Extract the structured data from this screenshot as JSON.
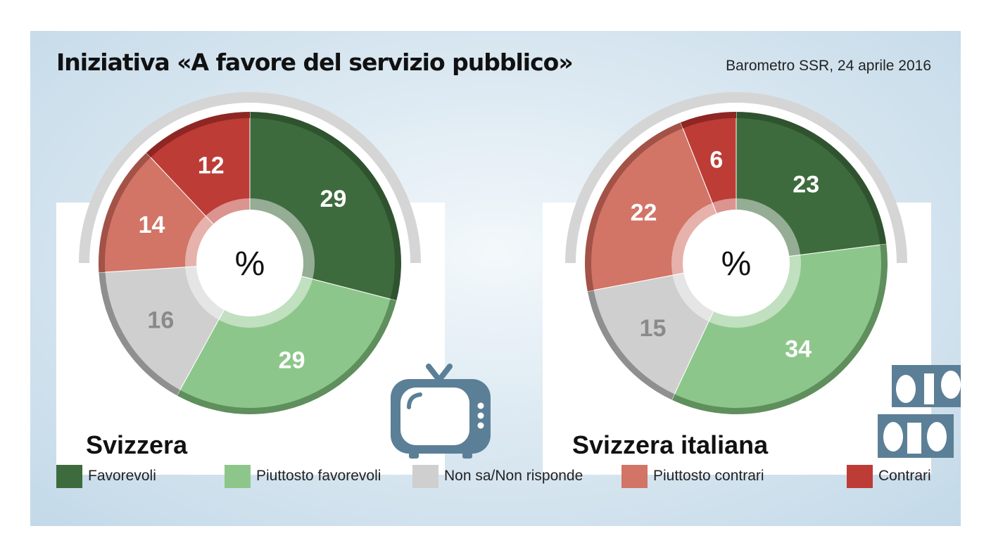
{
  "title": "Iniziativa «A favore del servizio pubblico»",
  "source": "Barometro SSR, 24 aprile 2016",
  "center_label": "%",
  "colors": {
    "favorevoli": "#3d6b3d",
    "piuttosto_favorevoli": "#8dc68a",
    "non_sa": "#cfcfcf",
    "piuttosto_contrari": "#d27466",
    "contrari": "#bd3c36"
  },
  "legend": [
    {
      "label": "Favorevoli",
      "color": "#3d6b3d"
    },
    {
      "label": "Piuttosto favorevoli",
      "color": "#8dc68a"
    },
    {
      "label": "Non sa/Non risponde",
      "color": "#cfcfcf"
    },
    {
      "label": "Piuttosto contrari",
      "color": "#d27466"
    },
    {
      "label": "Contrari",
      "color": "#bd3c36"
    }
  ],
  "icons": [
    "tv-icon",
    "film-icon"
  ],
  "chart_data": [
    {
      "type": "pie",
      "region": "Svizzera",
      "categories": [
        "Favorevoli",
        "Piuttosto favorevoli",
        "Non sa/Non risponde",
        "Piuttosto contrari",
        "Contrari"
      ],
      "values": [
        29,
        29,
        16,
        14,
        12
      ],
      "unit": "%"
    },
    {
      "type": "pie",
      "region": "Svizzera italiana",
      "categories": [
        "Favorevoli",
        "Piuttosto favorevoli",
        "Non sa/Non risponde",
        "Piuttosto contrari",
        "Contrari"
      ],
      "values": [
        23,
        34,
        15,
        22,
        6
      ],
      "unit": "%"
    }
  ]
}
